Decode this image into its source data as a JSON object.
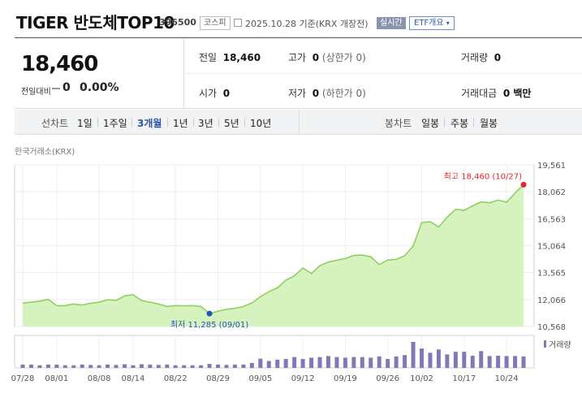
{
  "header": {
    "title": "TIGER 반도체TOP10",
    "code": "396500",
    "market": "코스피",
    "date": "2025.10.28 기준(KRX 개장전)",
    "realtime": "실시간",
    "etf_info": "ETF개요"
  },
  "quote": {
    "price": "18,460",
    "change_label": "전일대비",
    "change": "0",
    "change_pct": "0.00%"
  },
  "stats": {
    "prev_close_label": "전일",
    "prev_close": "18,460",
    "high_label": "고가",
    "high": "0",
    "high_limit": "(상한가 0)",
    "volume_label": "거래량",
    "volume": "0",
    "open_label": "시가",
    "open": "0",
    "low_label": "저가",
    "low": "0",
    "low_limit": "(하한가 0)",
    "amount_label": "거래대금",
    "amount": "0 백만"
  },
  "tabs": {
    "line_label": "선차트",
    "line_periods": [
      "1일",
      "1주일",
      "3개월",
      "1년",
      "3년",
      "5년",
      "10년"
    ],
    "selected": "3개월",
    "candle_label": "봉차트",
    "candle_periods": [
      "일봉",
      "주봉",
      "월봉"
    ]
  },
  "source": "한국거래소(KRX)",
  "colors": {
    "line": "#8fd05c",
    "fill": "#d6f3bf",
    "high": "#e0262b",
    "low": "#2755b5",
    "volume": "#8378b4"
  },
  "chart_data": {
    "type": "area",
    "x_tick_labels": [
      "07/28",
      "08/01",
      "08/08",
      "08/14",
      "08/22",
      "08/29",
      "09/05",
      "09/12",
      "09/19",
      "09/26",
      "10/02",
      "10/17",
      "10/24"
    ],
    "y_ticks": [
      "19,561",
      "18,062",
      "16,563",
      "15,064",
      "13,565",
      "12,066",
      "10,568"
    ],
    "ylim": [
      10568,
      19561
    ],
    "values": [
      11870,
      11920,
      11980,
      12080,
      11720,
      11730,
      11820,
      11760,
      11860,
      11920,
      12060,
      12020,
      12270,
      12340,
      12010,
      11920,
      11820,
      11680,
      11730,
      11720,
      11730,
      11680,
      11285,
      11420,
      11520,
      11580,
      11680,
      11880,
      12220,
      12500,
      12720,
      13150,
      13380,
      13820,
      13520,
      13950,
      14150,
      14250,
      14350,
      14520,
      14540,
      14450,
      14010,
      14270,
      14300,
      14500,
      15050,
      16350,
      16400,
      16100,
      16650,
      17090,
      17030,
      17280,
      17500,
      17450,
      17600,
      17480,
      18000,
      18460
    ],
    "high_annotation": "최고 18,460 (10/27)",
    "low_annotation": "최저 11,285 (09/01)",
    "volume_label": "거래량",
    "volume": [
      1,
      1,
      0.8,
      1,
      1,
      0.8,
      0.8,
      1,
      0.9,
      0.8,
      1,
      0.9,
      1.1,
      0.8,
      1.1,
      1,
      0.9,
      1,
      0.8,
      0.8,
      0.8,
      0.8,
      1.2,
      1,
      0.9,
      1,
      1,
      1.5,
      2.8,
      2.1,
      2.5,
      2.7,
      3.3,
      2.7,
      3.1,
      3.3,
      3.6,
      3.3,
      3.1,
      3.3,
      3.3,
      3.1,
      3.5,
      2.7,
      3.5,
      3.9,
      7.9,
      5.9,
      4.6,
      5.6,
      4.1,
      4.9,
      4.9,
      3.7,
      5.1,
      3.6,
      3.7,
      3.6,
      3.6,
      3.5
    ]
  }
}
